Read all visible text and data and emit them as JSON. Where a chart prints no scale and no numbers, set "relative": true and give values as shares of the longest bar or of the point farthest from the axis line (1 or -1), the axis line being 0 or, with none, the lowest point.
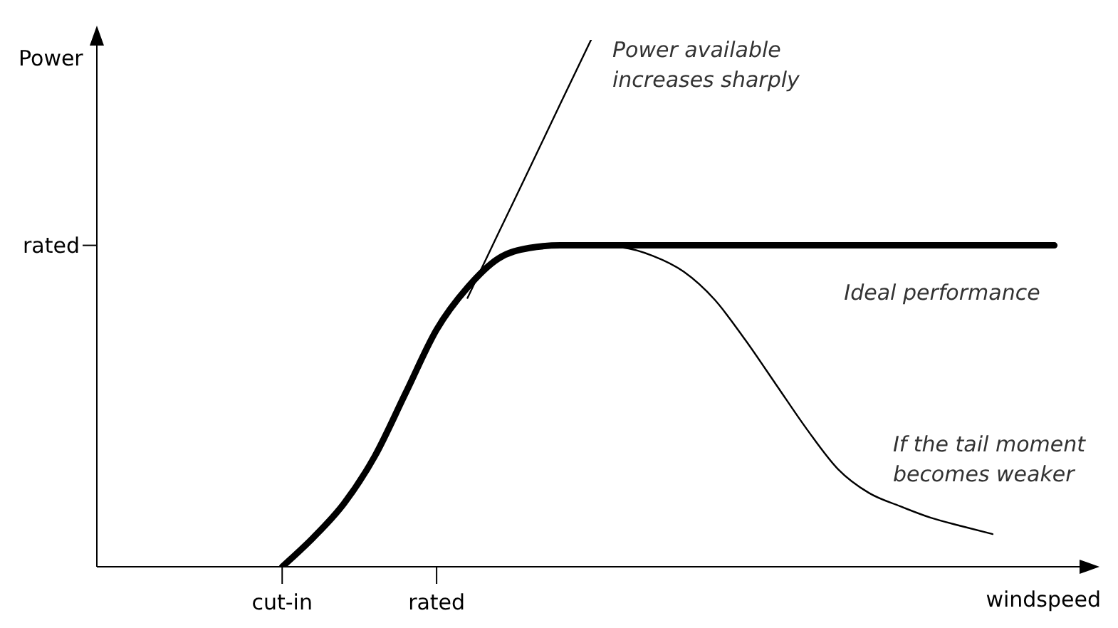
{
  "chart_data": {
    "type": "line",
    "relative": true,
    "xlabel": "windspeed",
    "ylabel": "Power",
    "marker": "none",
    "line_style": "solid",
    "categories": [
      null,
      null,
      null,
      null,
      null,
      null,
      "cut-in",
      null,
      null,
      null,
      null,
      "rated",
      null,
      null,
      null,
      null,
      null,
      null,
      null,
      null,
      null,
      null,
      null,
      null,
      null,
      null,
      null,
      null,
      null,
      null,
      null,
      null,
      null
    ],
    "annotations": [
      "rated"
    ],
    "series": [
      {
        "name": "Ideal performance",
        "color": "#000000",
        "values": [
          null,
          null,
          null,
          null,
          null,
          null,
          0,
          0.055,
          0.12,
          0.21,
          0.33,
          0.45,
          0.53,
          0.585,
          0.605,
          0.61,
          0.61,
          0.61,
          0.61,
          0.61,
          0.61,
          0.61,
          0.61,
          0.61,
          0.61,
          0.61,
          0.61,
          0.61,
          0.61,
          0.61,
          0.61,
          0.61,
          null
        ]
      },
      {
        "name": "Power available increases sharply",
        "color": "#000000",
        "values": [
          null,
          null,
          null,
          null,
          null,
          null,
          null,
          null,
          null,
          null,
          null,
          null,
          0.51,
          0.633,
          0.755,
          0.878,
          1,
          null,
          null,
          null,
          null,
          null,
          null,
          null,
          null,
          null,
          null,
          null,
          null,
          null,
          null,
          null,
          null
        ]
      },
      {
        "name": "If the tail moment becomes weaker",
        "color": "#000000",
        "values": [
          null,
          null,
          null,
          null,
          null,
          null,
          null,
          null,
          null,
          null,
          null,
          null,
          null,
          null,
          null,
          0.61,
          0.609,
          0.606,
          0.59,
          0.56,
          0.507,
          0.43,
          0.345,
          0.26,
          0.185,
          0.14,
          0.115,
          0.093,
          0.077,
          0.062,
          null,
          null,
          null
        ]
      }
    ]
  }
}
